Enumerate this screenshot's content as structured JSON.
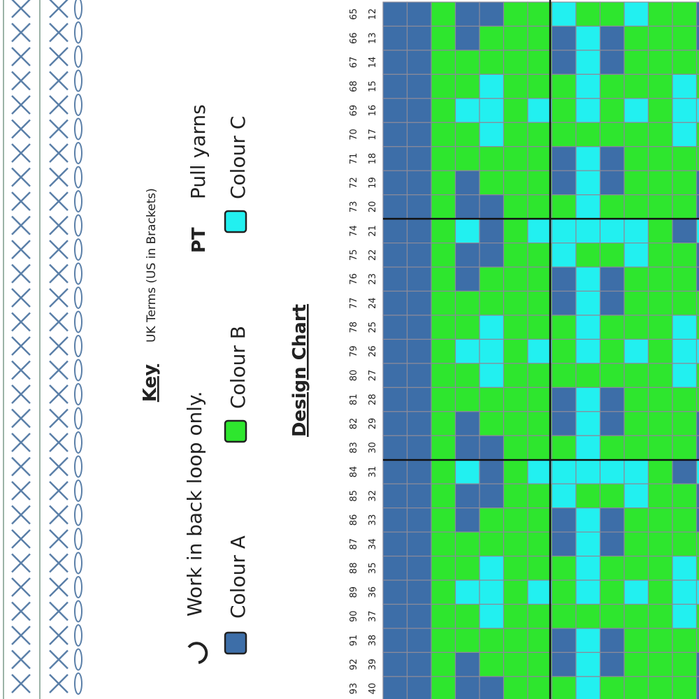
{
  "key": {
    "title": "Key",
    "terms_note": "UK Terms (US in Brackets)",
    "stitches": [
      {
        "label": "Work in back loop only."
      },
      {
        "symbol": "PT",
        "label": "Pull yarns"
      }
    ],
    "colours": [
      {
        "label": "Colour A",
        "color": "#3d6ea8"
      },
      {
        "label": "Colour B",
        "color": "#2ee62e"
      },
      {
        "label": "Colour C",
        "color": "#22f0f0"
      }
    ]
  },
  "design_chart": {
    "title": "Design Chart",
    "row_numbers_outer": [
      65,
      66,
      67,
      68,
      69,
      70,
      71,
      72,
      73,
      74,
      75,
      76,
      77,
      78,
      79,
      80,
      81,
      82,
      83,
      84,
      85,
      86,
      87,
      88,
      89,
      90,
      91,
      92,
      93
    ],
    "row_numbers_inner": [
      12,
      13,
      14,
      15,
      16,
      17,
      18,
      19,
      20,
      21,
      22,
      23,
      24,
      25,
      26,
      27,
      28,
      29,
      30,
      31,
      32,
      33,
      34,
      35,
      36,
      37,
      38,
      39,
      40
    ]
  }
}
